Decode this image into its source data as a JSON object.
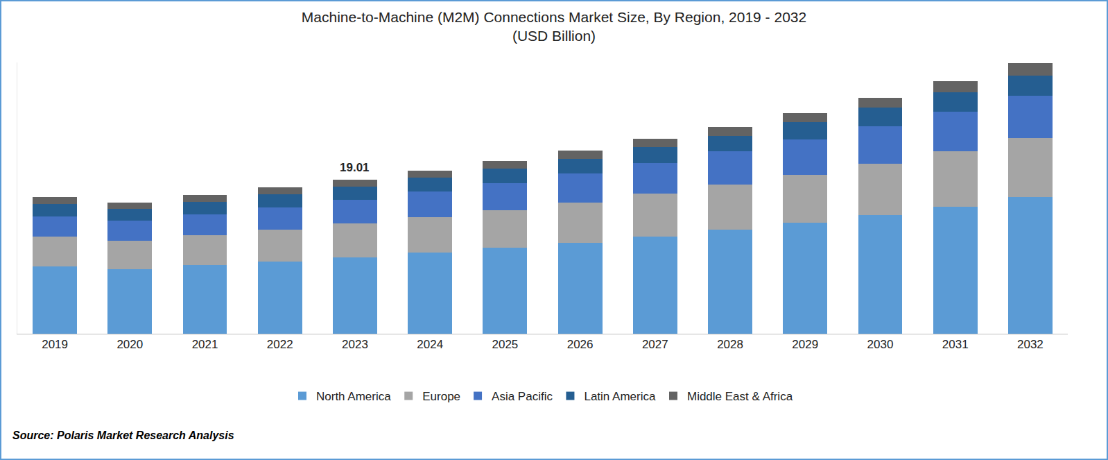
{
  "chart_data": {
    "type": "bar",
    "title": "Machine-to-Machine (M2M) Connections Market Size, By Region, 2019 - 2032",
    "subtitle": "(USD Billion)",
    "source": "Source: Polaris Market Research Analysis",
    "categories": [
      "2019",
      "2020",
      "2021",
      "2022",
      "2023",
      "2024",
      "2025",
      "2026",
      "2027",
      "2028",
      "2029",
      "2030",
      "2031",
      "2032"
    ],
    "series": [
      {
        "name": "North America",
        "color": "#5b9bd5",
        "values": [
          8.27,
          8.01,
          8.44,
          8.95,
          9.46,
          10.06,
          10.66,
          11.25,
          12.02,
          12.87,
          13.73,
          14.66,
          15.69,
          16.88
        ]
      },
      {
        "name": "Europe",
        "color": "#a5a5a5",
        "values": [
          3.75,
          3.5,
          3.75,
          3.92,
          4.18,
          4.35,
          4.6,
          4.94,
          5.29,
          5.54,
          5.88,
          6.31,
          6.82,
          7.25
        ]
      },
      {
        "name": "Asia Pacific",
        "color": "#4472c4",
        "values": [
          2.47,
          2.47,
          2.56,
          2.73,
          2.9,
          3.15,
          3.32,
          3.58,
          3.75,
          4.09,
          4.35,
          4.69,
          4.94,
          5.29
        ]
      },
      {
        "name": "Latin America",
        "color": "#255e91",
        "values": [
          1.53,
          1.45,
          1.53,
          1.62,
          1.62,
          1.71,
          1.79,
          1.79,
          1.96,
          1.96,
          2.13,
          2.3,
          2.39,
          2.47
        ]
      },
      {
        "name": "Middle East & Africa",
        "color": "#636363",
        "values": [
          0.85,
          0.77,
          0.85,
          0.85,
          0.85,
          0.85,
          0.94,
          1.02,
          1.02,
          1.11,
          1.19,
          1.19,
          1.36,
          1.53
        ]
      }
    ],
    "annotations": [
      {
        "category": "2023",
        "text": "19.01"
      }
    ],
    "ylim": [
      0,
      33.5
    ],
    "stacked": true,
    "grid": false,
    "legend": "bottom",
    "tick_labels": "x"
  }
}
